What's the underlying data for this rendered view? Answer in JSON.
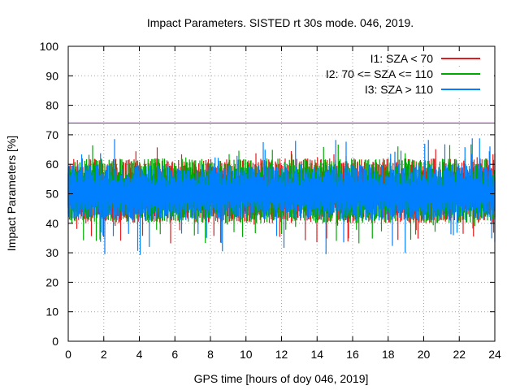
{
  "chart_data": {
    "type": "line",
    "title": "Impact Parameters. SISTED rt 30s mode. 046, 2019.",
    "xlabel": "GPS time [hours of doy 046, 2019]",
    "ylabel": "Impact Parameters [%]",
    "xlim": [
      0,
      24
    ],
    "ylim": [
      0,
      100
    ],
    "x_ticks": [
      0,
      2,
      4,
      6,
      8,
      10,
      12,
      14,
      16,
      18,
      20,
      22,
      24
    ],
    "y_ticks": [
      0,
      10,
      20,
      30,
      40,
      50,
      60,
      70,
      80,
      90,
      100
    ],
    "grid": true,
    "legend_position": "top-right",
    "series": [
      {
        "name": "I1: SZA < 70",
        "color": "#e41a1c",
        "mean": 50,
        "typical_range": [
          40,
          62
        ],
        "min": 33,
        "max": 66
      },
      {
        "name": "I2: 70 <= SZA <= 110",
        "color": "#00aa00",
        "mean": 50,
        "typical_range": [
          40,
          62
        ],
        "min": 33,
        "max": 67
      },
      {
        "name": "I3: SZA > 110",
        "color": "#0080ff",
        "mean": 50,
        "typical_range": [
          41,
          60
        ],
        "min": 29,
        "max": 69
      }
    ],
    "reference_line": {
      "value": 74,
      "color": "#9400d3"
    }
  }
}
